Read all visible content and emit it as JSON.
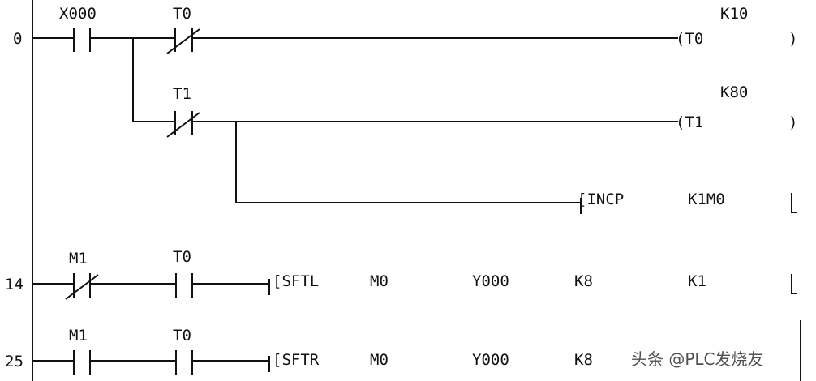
{
  "rungs": [
    {
      "step": "0",
      "contacts": [
        {
          "label": "X000",
          "type": "NO"
        },
        {
          "label": "T0",
          "type": "NC"
        }
      ],
      "output": {
        "open": "(T0",
        "arg": "K10",
        "close": ")"
      }
    },
    {
      "step": "",
      "contacts": [
        {
          "label": "T1",
          "type": "NC"
        }
      ],
      "output": {
        "open": "(T1",
        "arg": "K80",
        "close": ")"
      }
    },
    {
      "step": "",
      "contacts": [],
      "output": {
        "open": "[INCP",
        "arg": "K1M0",
        "close": "]"
      }
    },
    {
      "step": "14",
      "contacts": [
        {
          "label": "M1",
          "type": "NC"
        },
        {
          "label": "T0",
          "type": "NO"
        }
      ],
      "output": {
        "open": "[SFTL",
        "args": [
          "M0",
          "Y000",
          "K8",
          "K1"
        ],
        "close": "]"
      }
    },
    {
      "step": "25",
      "contacts": [
        {
          "label": "M1",
          "type": "NO"
        },
        {
          "label": "T0",
          "type": "NO"
        }
      ],
      "output": {
        "open": "[SFTR",
        "args": [
          "M0",
          "Y000",
          "K8"
        ]
      }
    }
  ],
  "watermark": "头条 @PLC发烧友"
}
